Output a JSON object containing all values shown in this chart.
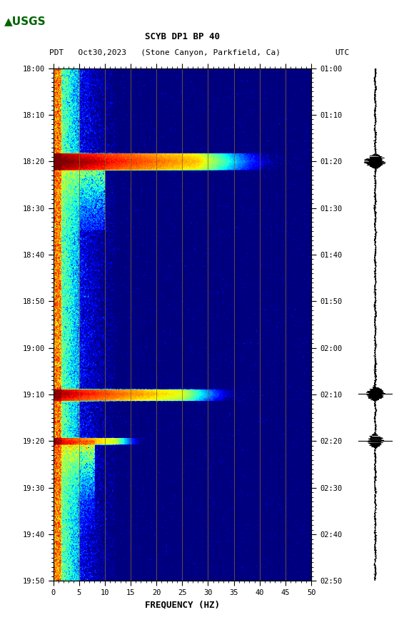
{
  "title_line1": "SCYB DP1 BP 40",
  "title_line2_left": "PDT   Oct30,2023   (Stone Canyon, Parkfield, Ca)",
  "title_line2_right": "UTC",
  "xlabel": "FREQUENCY (HZ)",
  "freq_min": 0,
  "freq_max": 50,
  "freq_ticks": [
    0,
    5,
    10,
    15,
    20,
    25,
    30,
    35,
    40,
    45,
    50
  ],
  "time_labels_left": [
    "18:00",
    "18:10",
    "18:20",
    "18:30",
    "18:40",
    "18:50",
    "19:00",
    "19:10",
    "19:20",
    "19:30",
    "19:40",
    "19:50"
  ],
  "time_labels_right": [
    "01:00",
    "01:10",
    "01:20",
    "01:30",
    "01:40",
    "01:50",
    "02:00",
    "02:10",
    "02:20",
    "02:30",
    "02:40",
    "02:50"
  ],
  "colormap": "jet",
  "background_color": "#ffffff",
  "vertical_line_color": "#8B6914",
  "vertical_line_freq": [
    5,
    10,
    15,
    20,
    25,
    30,
    35,
    40,
    45
  ],
  "usgs_logo_color": "#006400",
  "text_font": "monospace",
  "n_time": 600,
  "n_freq": 500,
  "total_minutes": 110,
  "event1_minute": 20,
  "event2_minute": 70,
  "event3_minute": 80,
  "event3b_minute": 82
}
